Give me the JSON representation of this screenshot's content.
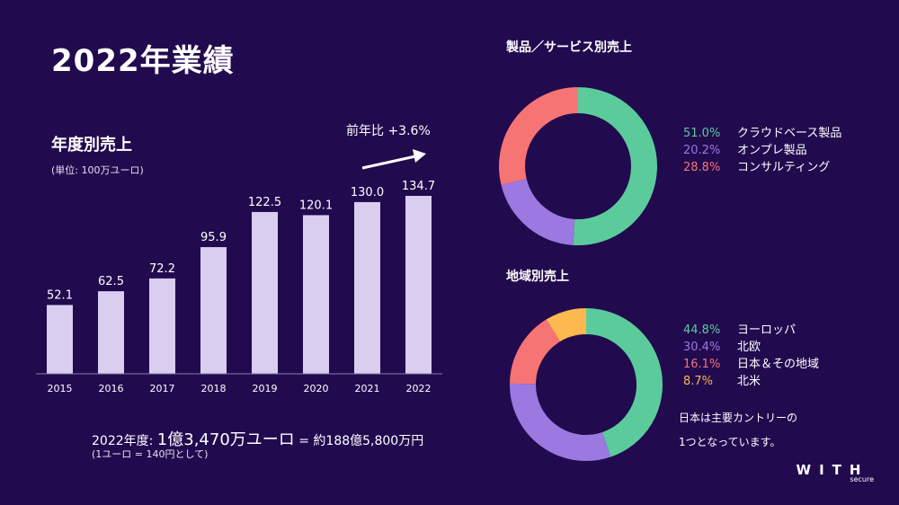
{
  "page": {
    "title": "2022年業績"
  },
  "bar_section": {
    "title": "年度別売上",
    "unit_note": "(単位: 100万ユーロ)",
    "yoy_label": "前年比 +3.6%"
  },
  "summary": {
    "prefix": "2022年度: ",
    "amount": "1億3,470万ユーロ",
    "suffix": " = 約188億5,800万円",
    "note": "(1ユーロ = 140円として)"
  },
  "product_section": {
    "title": "製品／サービス別売上"
  },
  "region_section": {
    "title": "地域別売上",
    "note_line1": "日本は主要カントリーの",
    "note_line2": "1つとなっています。"
  },
  "logo": {
    "word": "WITH",
    "sub": "secure"
  },
  "colors": {
    "bar": "#d9cdf0",
    "green": "#5ccb9c",
    "purple": "#9b79e0",
    "red": "#f77474",
    "yellow": "#fdb84f"
  },
  "chart_data": [
    {
      "type": "bar",
      "categories": [
        "2015",
        "2016",
        "2017",
        "2018",
        "2019",
        "2020",
        "2021",
        "2022"
      ],
      "values": [
        52.1,
        62.5,
        72.2,
        95.9,
        122.5,
        120.1,
        130.0,
        134.7
      ],
      "value_labels": [
        "52.1",
        "62.5",
        "72.2",
        "95.9",
        "122.5",
        "120.1",
        "130.0",
        "134.7"
      ],
      "title": "年度別売上",
      "ylim": [
        0,
        140
      ]
    },
    {
      "type": "pie",
      "title": "製品／サービス別売上",
      "slices": [
        {
          "label": "クラウドベース製品",
          "value": 51.0,
          "display": "51.0%",
          "color": "#5ccb9c"
        },
        {
          "label": "オンプレ製品",
          "value": 20.2,
          "display": "20.2%",
          "color": "#9b79e0"
        },
        {
          "label": "コンサルティング",
          "value": 28.8,
          "display": "28.8%",
          "color": "#f77474"
        }
      ]
    },
    {
      "type": "pie",
      "title": "地域別売上",
      "slices": [
        {
          "label": "ヨーロッパ",
          "value": 44.8,
          "display": "44.8%",
          "color": "#5ccb9c"
        },
        {
          "label": "北欧",
          "value": 30.4,
          "display": "30.4%",
          "color": "#9b79e0"
        },
        {
          "label": "日本＆その地域",
          "value": 16.1,
          "display": "16.1%",
          "color": "#f77474"
        },
        {
          "label": "北米",
          "value": 8.7,
          "display": "8.7%",
          "color": "#fdb84f"
        }
      ]
    }
  ]
}
